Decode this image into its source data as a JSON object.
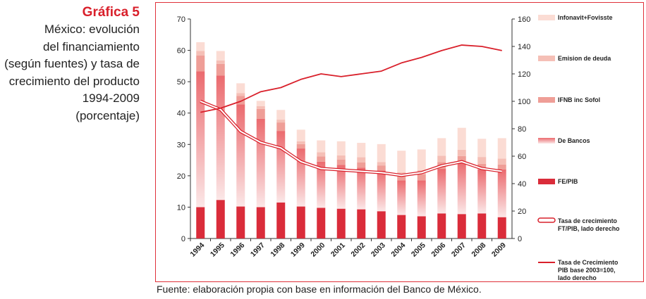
{
  "title": {
    "heading": "Gráfica 5",
    "lines": [
      "México: evolución",
      "del financiamiento",
      "(según fuentes) y tasa de",
      "crecimiento del producto",
      "1994-2009",
      "(porcentaje)"
    ]
  },
  "source": "Fuente: elaboración propia con base en información del Banco de México.",
  "colors": {
    "frame": "#e0313a",
    "fe_pib": "#da2c3a",
    "de_bancos_top": "#eb6a6e",
    "de_bancos_bottom": "#fbe7e7",
    "ifnb": "#ef9e97",
    "emision": "#f5bfb6",
    "infonavit": "#fbdcd4",
    "line": "#d9202b"
  },
  "chart_data": {
    "type": "bar",
    "stacked": true,
    "categories": [
      "1994",
      "1995",
      "1996",
      "1997",
      "1998",
      "1999",
      "2000",
      "2001",
      "2002",
      "2003",
      "2004",
      "2005",
      "2006",
      "2007",
      "2008",
      "2009"
    ],
    "ylim_left": [
      0,
      70
    ],
    "yticks_left": [
      "0",
      "10",
      "20",
      "30",
      "40",
      "50",
      "60",
      "70"
    ],
    "ylim_right": [
      0,
      160
    ],
    "yticks_right": [
      "0",
      "20",
      "40",
      "60",
      "80",
      "100",
      "120",
      "140",
      "160"
    ],
    "series": [
      {
        "name": "FE/PIB",
        "axis": "left",
        "values": [
          10.0,
          12.3,
          10.2,
          10.0,
          11.5,
          10.2,
          9.8,
          9.5,
          9.3,
          8.7,
          7.5,
          7.1,
          8.0,
          7.8,
          8.0,
          6.8
        ]
      },
      {
        "name": "De Bancos",
        "axis": "left",
        "values": [
          43.3,
          39.7,
          32.6,
          28.2,
          22.8,
          18.5,
          14.7,
          14.0,
          13.3,
          13.0,
          11.0,
          11.4,
          14.2,
          16.7,
          14.0,
          15.2
        ]
      },
      {
        "name": "IFNB inc Sofol",
        "axis": "left",
        "values": [
          5.1,
          3.7,
          2.7,
          3.1,
          2.7,
          1.4,
          1.7,
          1.7,
          1.7,
          1.6,
          1.7,
          2.0,
          2.2,
          1.8,
          1.8,
          1.6
        ]
      },
      {
        "name": "Emision de deuda",
        "axis": "left",
        "values": [
          1.4,
          1.1,
          0.9,
          0.9,
          0.9,
          0.9,
          1.3,
          1.3,
          1.6,
          1.1,
          0.9,
          1.3,
          2.0,
          2.0,
          2.2,
          1.9
        ]
      },
      {
        "name": "Infonavit+Fovisste",
        "axis": "left",
        "values": [
          2.8,
          3.0,
          3.1,
          1.7,
          3.1,
          3.7,
          3.8,
          4.5,
          4.6,
          5.7,
          6.9,
          6.6,
          5.6,
          7.0,
          5.8,
          6.5
        ]
      },
      {
        "name": "Tasa de crecimiento FT/PIB, lado derecho",
        "axis": "right",
        "kind": "line-double",
        "values": [
          100,
          94,
          78,
          70,
          66,
          56,
          51,
          50,
          49,
          48,
          46,
          48,
          53,
          56,
          51,
          49
        ]
      },
      {
        "name": "Tasa de Crecimiento PIB base 2003=100, lado derecho",
        "axis": "right",
        "kind": "line",
        "values": [
          92,
          95,
          100,
          107,
          110,
          116,
          120,
          118,
          120,
          122,
          128,
          132,
          137,
          141,
          140,
          137
        ]
      }
    ],
    "legend": [
      {
        "label": "Infonavit+Fovisste",
        "swatch": "infonavit"
      },
      {
        "label": "Emision de deuda",
        "swatch": "emision"
      },
      {
        "label": "IFNB inc Sofol",
        "swatch": "ifnb"
      },
      {
        "label": "De Bancos",
        "swatch": "bancos"
      },
      {
        "label": "FE/PIB",
        "swatch": "fe"
      },
      {
        "label": "Tasa de crecimiento FT/PIB, lado derecho",
        "swatch": "double"
      },
      {
        "label": "Tasa de Crecimiento PIB base 2003=100, lado derecho",
        "swatch": "line"
      }
    ],
    "legend_position": "right"
  }
}
